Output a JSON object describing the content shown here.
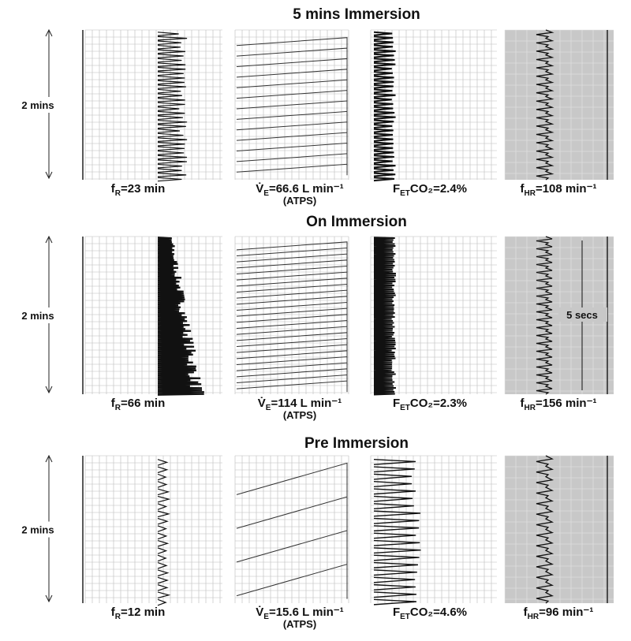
{
  "sections": [
    {
      "title": "5 mins Immersion",
      "duration": "2 mins",
      "fr": {
        "symbol": "f",
        "sub": "R",
        "text": "=23 min"
      },
      "ve": {
        "symbol": "V̇",
        "sub": "E",
        "text": "=66.6 L min⁻¹",
        "unit": "(ATPS)"
      },
      "co2": {
        "symbol": "F",
        "sub": "ET",
        "text": "CO₂=2.4%"
      },
      "hr": {
        "symbol": "f",
        "sub": "HR",
        "text": "=108 min⁻¹"
      }
    },
    {
      "title": "On Immersion",
      "duration": "2 mins",
      "fr": {
        "symbol": "f",
        "sub": "R",
        "text": "=66 min"
      },
      "ve": {
        "symbol": "V̇",
        "sub": "E",
        "text": "=114 L min⁻¹",
        "unit": "(ATPS)"
      },
      "co2": {
        "symbol": "F",
        "sub": "ET",
        "text": "CO₂=2.3%"
      },
      "hr": {
        "symbol": "f",
        "sub": "HR",
        "text": "=156 min⁻¹"
      },
      "marker": "5 secs"
    },
    {
      "title": "Pre Immersion",
      "duration": "2 mins",
      "fr": {
        "symbol": "f",
        "sub": "R",
        "text": "=12 min"
      },
      "ve": {
        "symbol": "V̇",
        "sub": "E",
        "text": "=15.6 L min⁻¹",
        "unit": "(ATPS)"
      },
      "co2": {
        "symbol": "F",
        "sub": "ET",
        "text": "CO₂=4.6%"
      },
      "hr": {
        "symbol": "f",
        "sub": "HR",
        "text": "=96 min⁻¹"
      }
    }
  ]
}
